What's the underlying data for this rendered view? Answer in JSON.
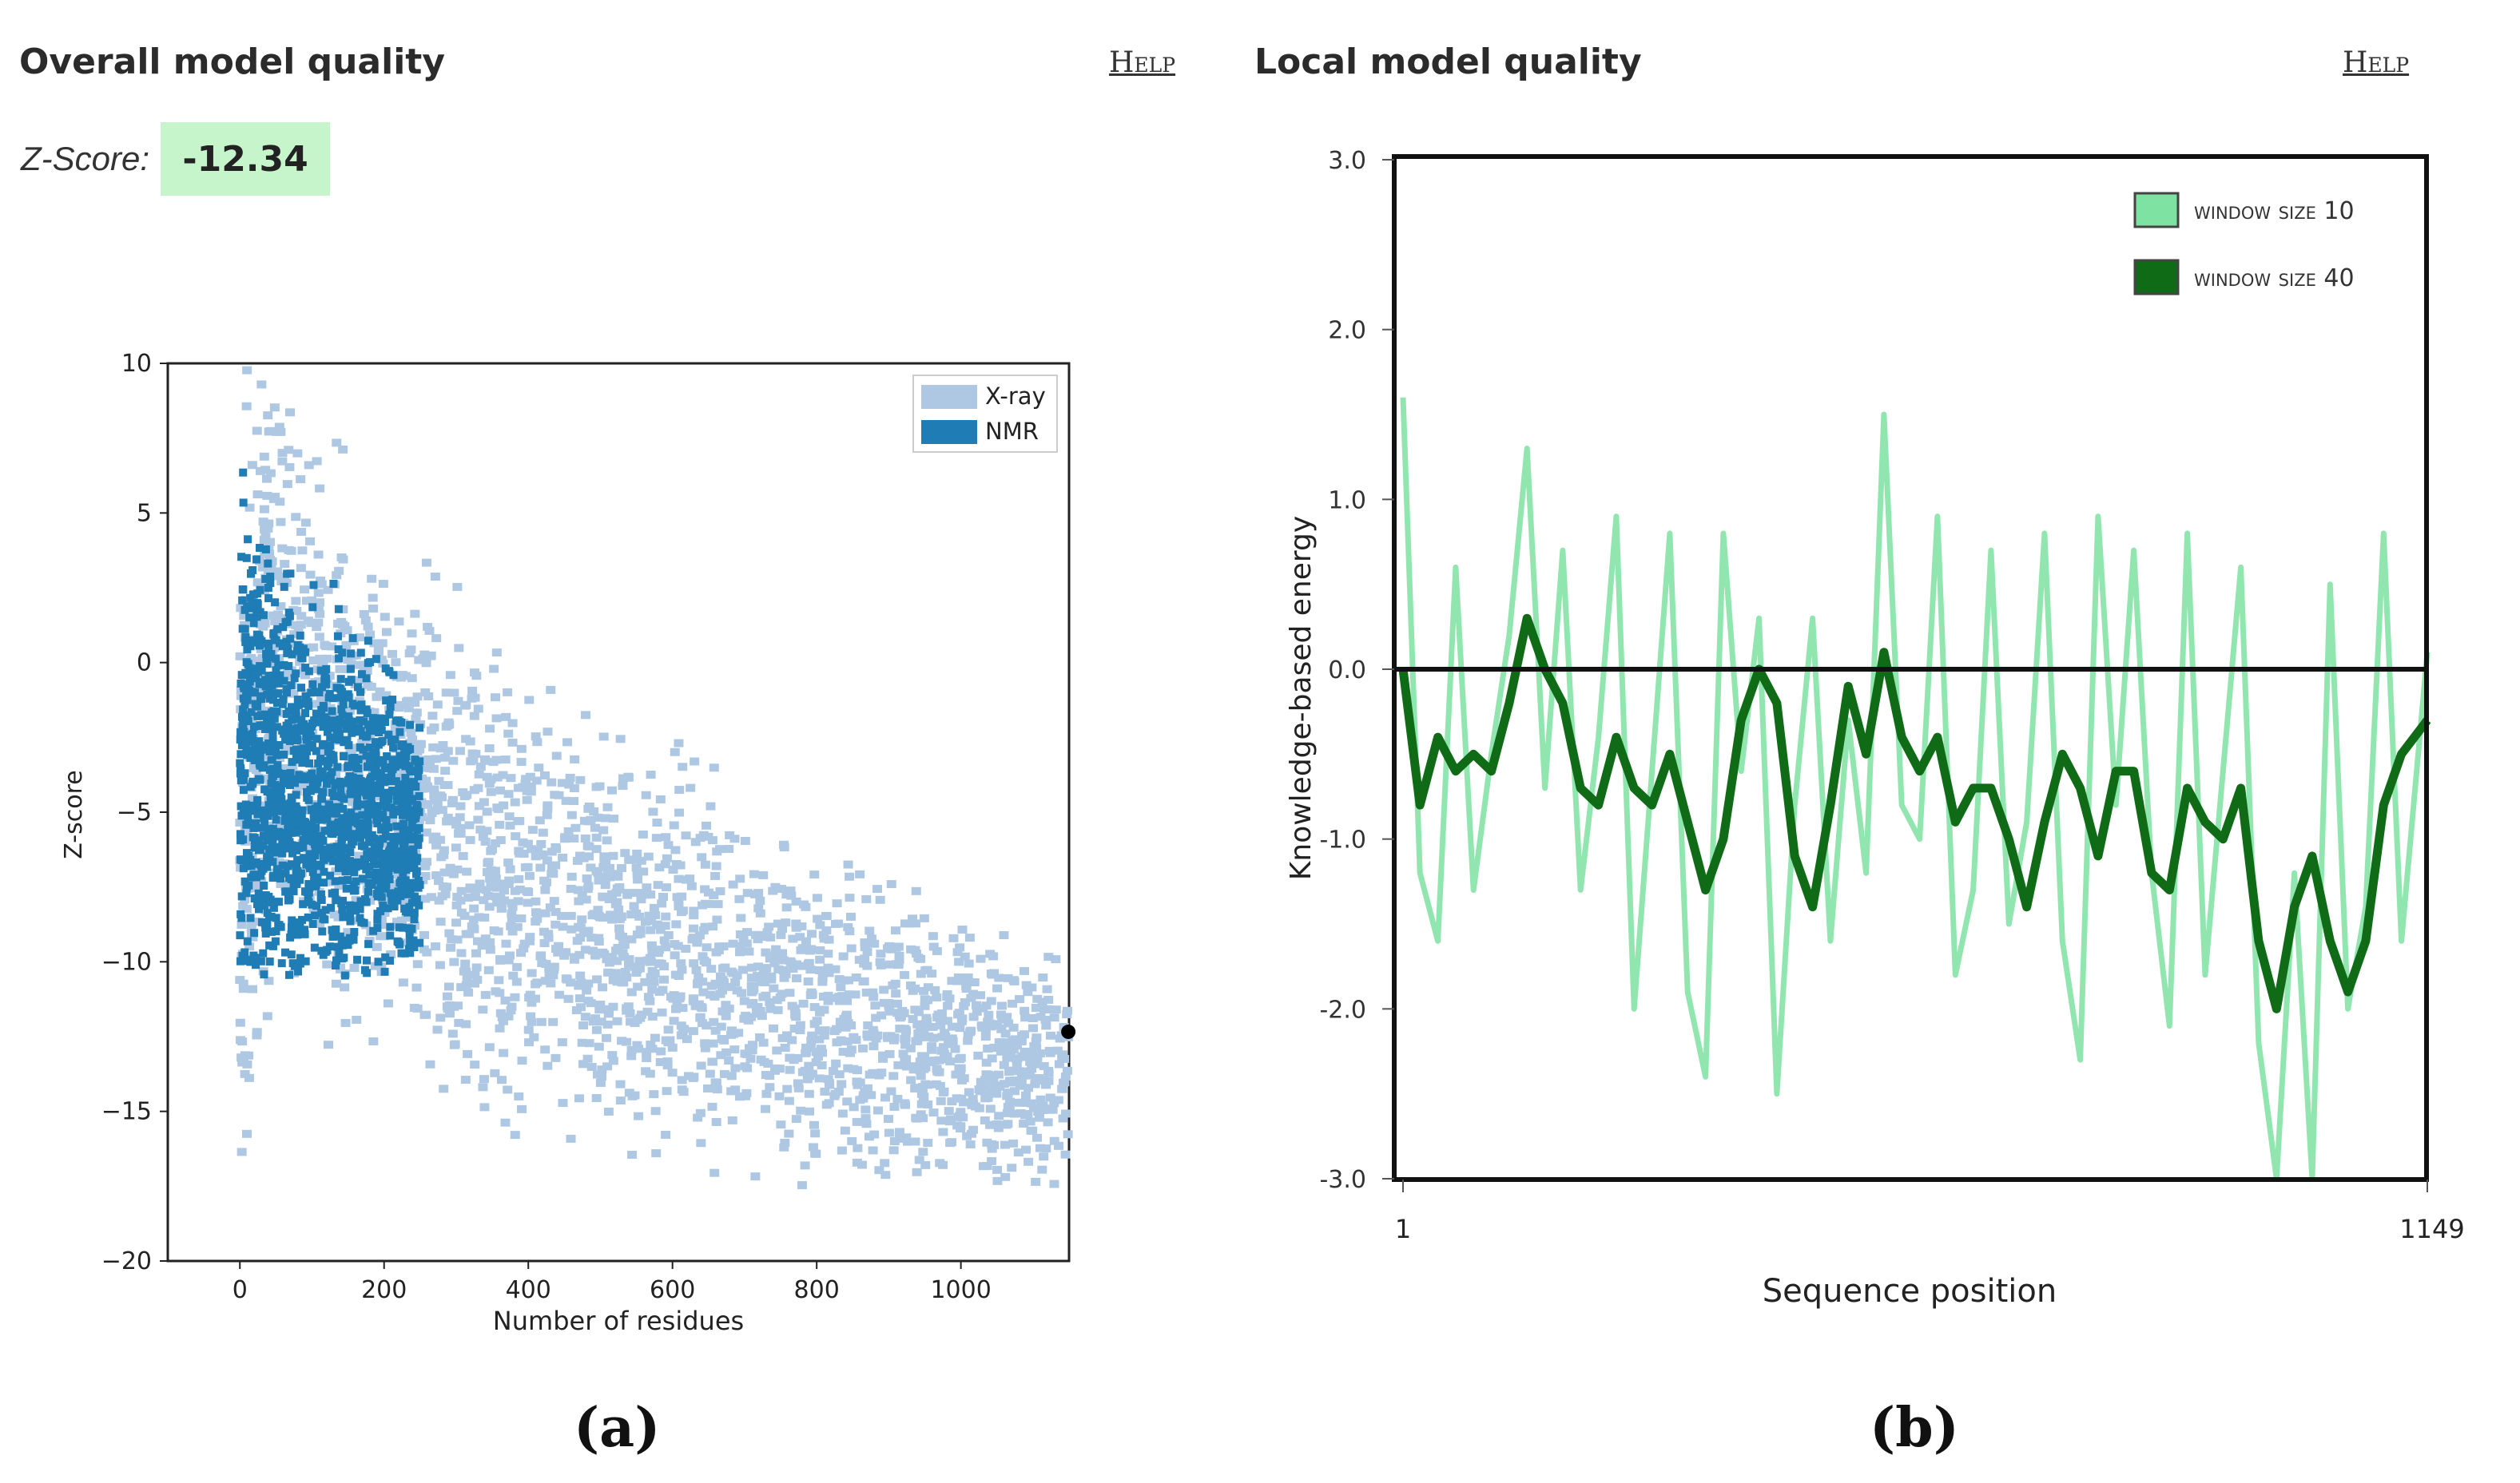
{
  "overall": {
    "title": "Overall model quality",
    "help_label": "Help",
    "zscore_label": "Z-Score:",
    "zscore_value": "-12.34",
    "caption": "(a)"
  },
  "local": {
    "title": "Local model quality",
    "help_label": "Help",
    "caption": "(b)"
  },
  "colors": {
    "xray": "#aec8e3",
    "nmr": "#1f7cb4",
    "w10": "#7ee2a2",
    "w40": "#0f6b16",
    "zscore_bg": "#c6f5cc"
  },
  "chart_data": [
    {
      "type": "scatter",
      "title": "",
      "xlabel": "Number of residues",
      "ylabel": "Z-score",
      "xlim": [
        -100,
        1150
      ],
      "ylim": [
        -20,
        10
      ],
      "x_ticks": [
        0,
        200,
        400,
        600,
        800,
        1000
      ],
      "x_tick_labels": [
        "0",
        "200",
        "400",
        "600",
        "800",
        "1000"
      ],
      "y_ticks": [
        10,
        5,
        0,
        -5,
        -10,
        -15,
        -20
      ],
      "y_tick_labels": [
        "10",
        "5",
        "0",
        "−5",
        "−10",
        "−15",
        "−20"
      ],
      "legend": [
        "X-ray",
        "NMR"
      ],
      "legend_position": "top-right",
      "series": [
        {
          "name": "X-ray",
          "description_points": [
            [
              0,
              -8
            ],
            [
              40,
              1
            ],
            [
              100,
              -2
            ],
            [
              200,
              -4
            ],
            [
              300,
              -6
            ],
            [
              400,
              -8
            ],
            [
              500,
              -9
            ],
            [
              600,
              -10
            ],
            [
              700,
              -11
            ],
            [
              800,
              -12
            ],
            [
              900,
              -12.5
            ],
            [
              1000,
              -13
            ],
            [
              1100,
              -14
            ]
          ],
          "spread": [
            [
              0,
              10
            ],
            [
              100,
              7
            ],
            [
              200,
              6
            ],
            [
              400,
              5.5
            ],
            [
              600,
              5
            ],
            [
              800,
              4
            ],
            [
              1000,
              3.5
            ],
            [
              1150,
              3
            ]
          ]
        },
        {
          "name": "NMR",
          "description_points": [
            [
              0,
              -3
            ],
            [
              50,
              -4
            ],
            [
              100,
              -4.5
            ],
            [
              150,
              -5
            ],
            [
              200,
              -5.5
            ],
            [
              250,
              -6
            ]
          ],
          "spread": [
            [
              0,
              6
            ],
            [
              100,
              5
            ],
            [
              250,
              3
            ]
          ]
        }
      ],
      "marker": {
        "name": "model",
        "x": 1149,
        "y": -12.34
      }
    },
    {
      "type": "line",
      "xlabel": "Sequence position",
      "ylabel": "Knowledge-based energy",
      "xlim": [
        1,
        1149
      ],
      "ylim": [
        -3.0,
        3.0
      ],
      "x_tick_labels": [
        "1",
        "1149"
      ],
      "y_ticks": [
        3.0,
        2.0,
        1.0,
        0.0,
        -1.0,
        -2.0,
        -3.0
      ],
      "y_tick_labels": [
        "3.0",
        "2.0",
        "1.0",
        "0.0",
        "-1.0",
        "-2.0",
        "-3.0"
      ],
      "legend": [
        "window size 10",
        "window size 40"
      ],
      "legend_position": "top-right",
      "series": [
        {
          "name": "window size 10",
          "x": [
            1,
            20,
            40,
            60,
            80,
            100,
            120,
            140,
            160,
            180,
            200,
            220,
            240,
            260,
            280,
            300,
            320,
            340,
            360,
            380,
            400,
            420,
            440,
            460,
            480,
            500,
            520,
            540,
            560,
            580,
            600,
            620,
            640,
            660,
            680,
            700,
            720,
            740,
            760,
            780,
            800,
            820,
            840,
            860,
            880,
            900,
            920,
            940,
            960,
            980,
            1000,
            1020,
            1040,
            1060,
            1080,
            1100,
            1120,
            1149
          ],
          "values": [
            1.6,
            -1.2,
            -1.6,
            0.6,
            -1.3,
            -0.5,
            0.2,
            1.3,
            -0.7,
            0.7,
            -1.3,
            -0.4,
            0.9,
            -2.0,
            -0.6,
            0.8,
            -1.9,
            -2.4,
            0.8,
            -0.6,
            0.3,
            -2.5,
            -0.8,
            0.3,
            -1.6,
            -0.3,
            -1.2,
            1.5,
            -0.8,
            -1.0,
            0.9,
            -1.8,
            -1.3,
            0.7,
            -1.5,
            -0.9,
            0.8,
            -1.6,
            -2.3,
            0.9,
            -0.8,
            0.7,
            -1.2,
            -2.1,
            0.8,
            -1.8,
            -0.6,
            0.6,
            -2.2,
            -3.0,
            -1.2,
            -3.0,
            0.5,
            -2.0,
            -1.4,
            0.8,
            -1.6,
            0.1
          ]
        },
        {
          "name": "window size 40",
          "x": [
            1,
            20,
            40,
            60,
            80,
            100,
            120,
            140,
            160,
            180,
            200,
            220,
            240,
            260,
            280,
            300,
            320,
            340,
            360,
            380,
            400,
            420,
            440,
            460,
            480,
            500,
            520,
            540,
            560,
            580,
            600,
            620,
            640,
            660,
            680,
            700,
            720,
            740,
            760,
            780,
            800,
            820,
            840,
            860,
            880,
            900,
            920,
            940,
            960,
            980,
            1000,
            1020,
            1040,
            1060,
            1080,
            1100,
            1120,
            1149
          ],
          "values": [
            0.0,
            -0.8,
            -0.4,
            -0.6,
            -0.5,
            -0.6,
            -0.2,
            0.3,
            0.0,
            -0.2,
            -0.7,
            -0.8,
            -0.4,
            -0.7,
            -0.8,
            -0.5,
            -0.9,
            -1.3,
            -1.0,
            -0.3,
            0.0,
            -0.2,
            -1.1,
            -1.4,
            -0.8,
            -0.1,
            -0.5,
            0.1,
            -0.4,
            -0.6,
            -0.4,
            -0.9,
            -0.7,
            -0.7,
            -1.0,
            -1.4,
            -0.9,
            -0.5,
            -0.7,
            -1.1,
            -0.6,
            -0.6,
            -1.2,
            -1.3,
            -0.7,
            -0.9,
            -1.0,
            -0.7,
            -1.6,
            -2.0,
            -1.4,
            -1.1,
            -1.6,
            -1.9,
            -1.6,
            -0.8,
            -0.5,
            -0.3
          ]
        }
      ],
      "zero_line": 0.0
    }
  ]
}
